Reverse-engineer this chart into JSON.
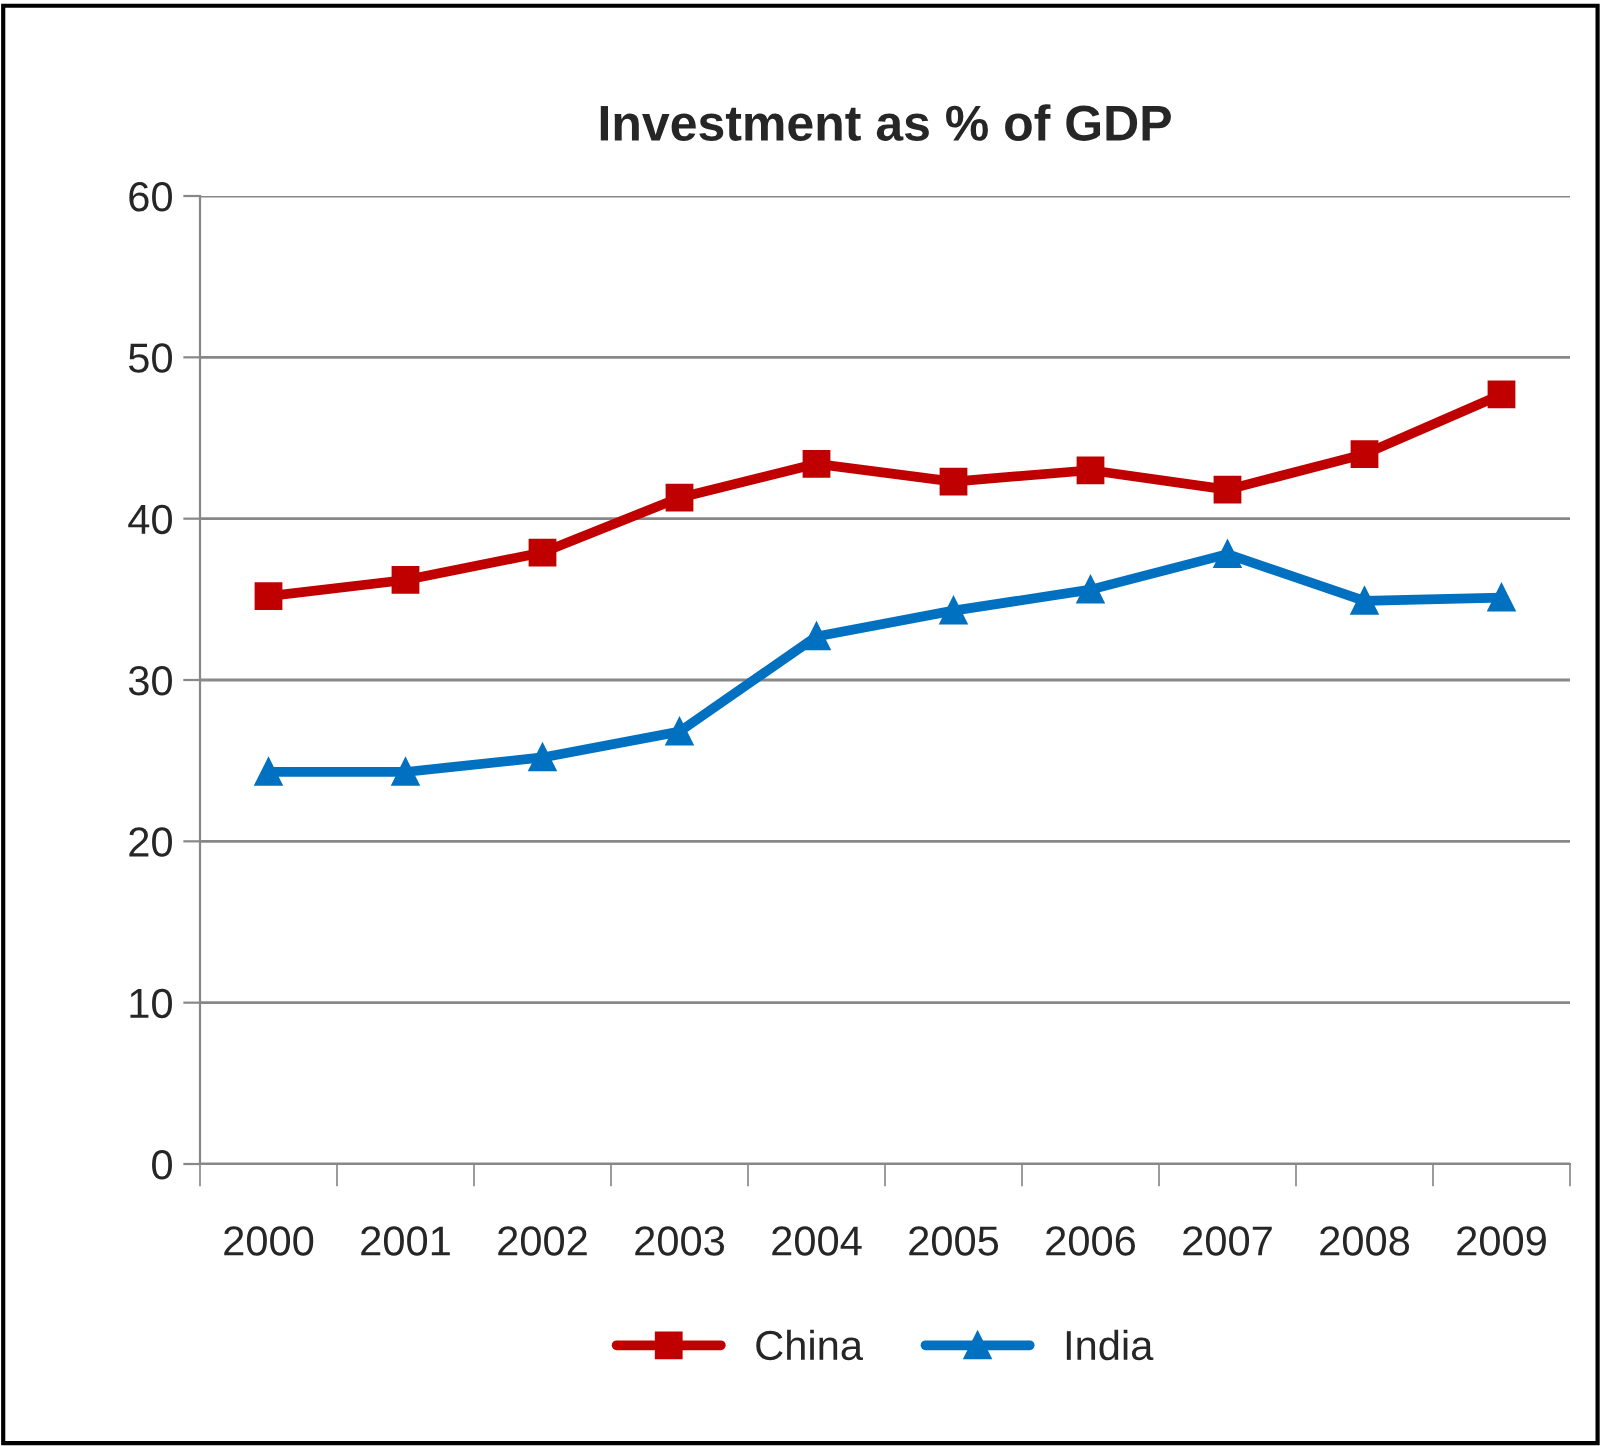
{
  "chart_data": {
    "type": "line",
    "title": "Investment as % of GDP",
    "categories": [
      "2000",
      "2001",
      "2002",
      "2003",
      "2004",
      "2005",
      "2006",
      "2007",
      "2008",
      "2009"
    ],
    "series": [
      {
        "name": "China",
        "color": "#c00000",
        "marker": "square",
        "values": [
          35.2,
          36.2,
          37.9,
          41.3,
          43.4,
          42.3,
          43.0,
          41.8,
          44.0,
          47.7
        ]
      },
      {
        "name": "India",
        "color": "#0070c0",
        "marker": "triangle",
        "values": [
          24.3,
          24.3,
          25.2,
          26.8,
          32.7,
          34.3,
          35.6,
          37.8,
          34.9,
          35.1
        ]
      }
    ],
    "ylim": [
      0,
      60
    ],
    "yticks": [
      0,
      10,
      20,
      30,
      40,
      50,
      60
    ],
    "grid": "y",
    "legend": "bottom",
    "line_style": "solid"
  }
}
